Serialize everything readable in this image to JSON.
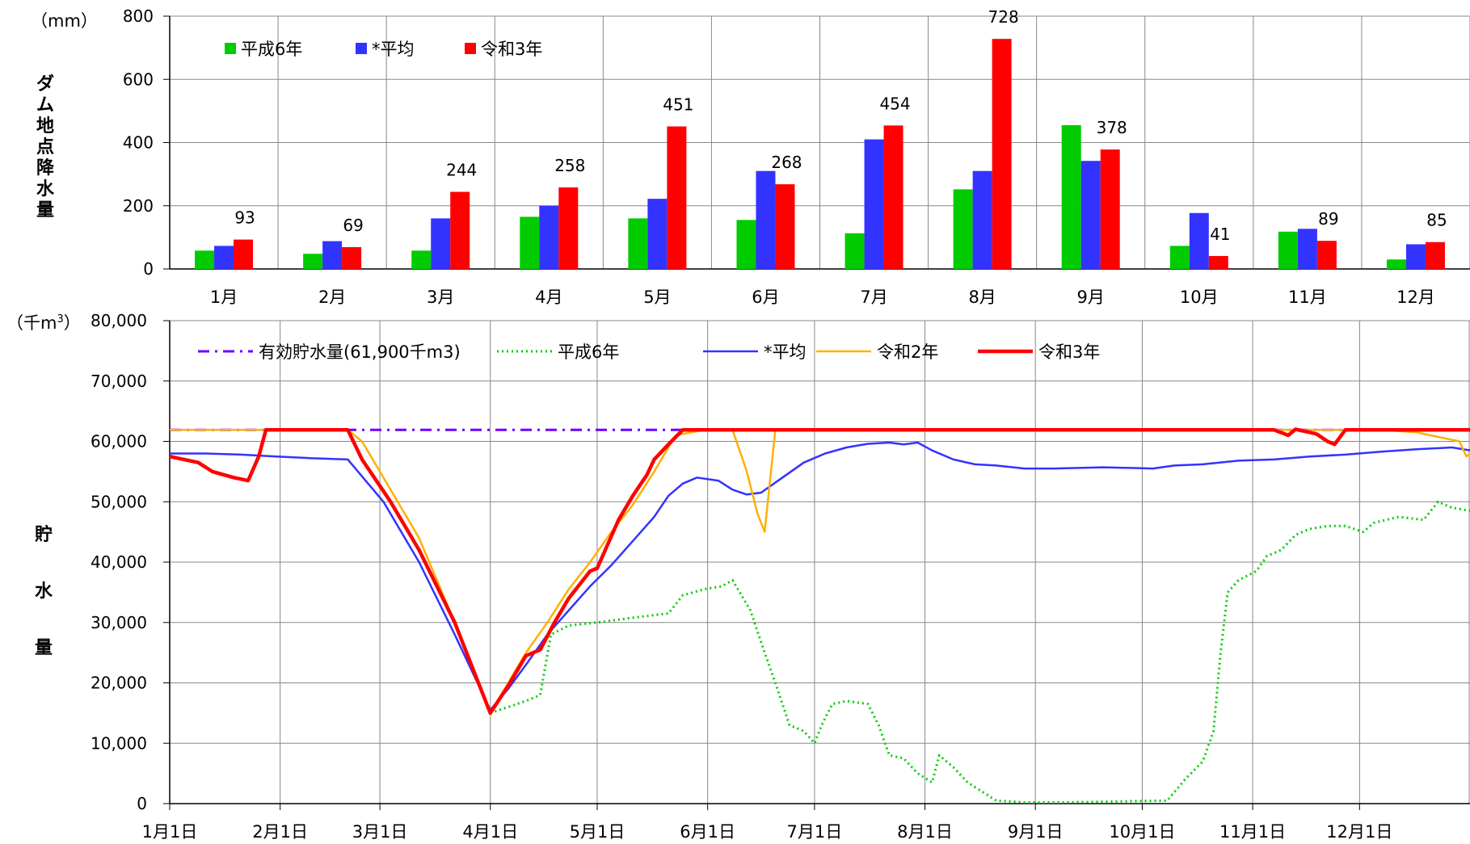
{
  "chart_data": [
    {
      "type": "bar",
      "ylabel": "ダム地点降水量",
      "unit": "（mm）",
      "ylim": [
        0,
        800
      ],
      "yticks": [
        "0",
        "200",
        "400",
        "600",
        "800"
      ],
      "categories": [
        "1月",
        "2月",
        "3月",
        "4月",
        "5月",
        "6月",
        "7月",
        "8月",
        "9月",
        "10月",
        "11月",
        "12月"
      ],
      "series": [
        {
          "name": "平成6年",
          "color": "#00cc00",
          "values": [
            58,
            48,
            58,
            165,
            160,
            155,
            113,
            252,
            455,
            73,
            118,
            30
          ]
        },
        {
          "name": "*平均",
          "color": "#3333ff",
          "values": [
            73,
            88,
            160,
            200,
            222,
            310,
            410,
            310,
            342,
            177,
            127,
            78
          ]
        },
        {
          "name": "令和3年",
          "color": "#ff0000",
          "values": [
            93,
            69,
            244,
            258,
            451,
            268,
            454,
            728,
            378,
            41,
            89,
            85
          ],
          "labels": [
            "93",
            "69",
            "244",
            "258",
            "451",
            "268",
            "454",
            "728",
            "378",
            "41",
            "89",
            "85"
          ]
        }
      ],
      "legend": "top-left",
      "grid": true
    },
    {
      "type": "line",
      "ylabel": "貯水量",
      "unit_prefix": "（千m",
      "unit_sup": "3",
      "unit_suffix": "）",
      "ylim": [
        0,
        80000
      ],
      "yticks": [
        "0",
        "10,000",
        "20,000",
        "30,000",
        "40,000",
        "50,000",
        "60,000",
        "70,000",
        "80,000"
      ],
      "xticks": [
        "1月1日",
        "2月1日",
        "3月1日",
        "4月1日",
        "5月1日",
        "6月1日",
        "7月1日",
        "8月1日",
        "9月1日",
        "10月1日",
        "11月1日",
        "12月1日"
      ],
      "legend": "top",
      "grid": true,
      "series": [
        {
          "name": "有効貯水量(61,900千m3)",
          "color": "#6a00ff",
          "style": "dashdot",
          "points": [
            [
              0,
              61900
            ],
            [
              365,
              61900
            ]
          ]
        },
        {
          "name": "平成6年",
          "color": "#00cc00",
          "style": "dotted",
          "points": [
            [
              90,
              15000
            ],
            [
              100,
              17000
            ],
            [
              104,
              18000
            ],
            [
              107,
              28000
            ],
            [
              112,
              29500
            ],
            [
              120,
              30000
            ],
            [
              130,
              30800
            ],
            [
              140,
              31500
            ],
            [
              144,
              34500
            ],
            [
              150,
              35500
            ],
            [
              155,
              36000
            ],
            [
              158,
              37000
            ],
            [
              163,
              32000
            ],
            [
              167,
              25000
            ],
            [
              170,
              20000
            ],
            [
              174,
              13000
            ],
            [
              178,
              12000
            ],
            [
              181,
              10000
            ],
            [
              183,
              13000
            ],
            [
              186,
              16500
            ],
            [
              190,
              17000
            ],
            [
              196,
              16500
            ],
            [
              199,
              13000
            ],
            [
              202,
              8000
            ],
            [
              206,
              7500
            ],
            [
              210,
              5000
            ],
            [
              214,
              3500
            ],
            [
              216,
              8000
            ],
            [
              220,
              6000
            ],
            [
              224,
              3500
            ],
            [
              228,
              2000
            ],
            [
              232,
              500
            ],
            [
              240,
              200
            ],
            [
              250,
              200
            ],
            [
              260,
              300
            ],
            [
              270,
              400
            ],
            [
              280,
              500
            ],
            [
              285,
              4000
            ],
            [
              290,
              7000
            ],
            [
              293,
              12000
            ],
            [
              295,
              25000
            ],
            [
              297,
              35000
            ],
            [
              300,
              37000
            ],
            [
              305,
              38500
            ],
            [
              308,
              41000
            ],
            [
              312,
              42000
            ],
            [
              316,
              44500
            ],
            [
              320,
              45500
            ],
            [
              325,
              46000
            ],
            [
              330,
              46000
            ],
            [
              335,
              45000
            ],
            [
              338,
              46500
            ],
            [
              345,
              47500
            ],
            [
              352,
              47000
            ],
            [
              356,
              50000
            ],
            [
              360,
              49000
            ],
            [
              365,
              48500
            ]
          ]
        },
        {
          "name": "*平均",
          "color": "#3333ff",
          "style": "solid",
          "points": [
            [
              0,
              58000
            ],
            [
              10,
              58000
            ],
            [
              20,
              57800
            ],
            [
              30,
              57500
            ],
            [
              40,
              57200
            ],
            [
              50,
              57000
            ],
            [
              60,
              50000
            ],
            [
              70,
              40000
            ],
            [
              80,
              28000
            ],
            [
              90,
              15500
            ],
            [
              95,
              19000
            ],
            [
              100,
              23000
            ],
            [
              106,
              28000
            ],
            [
              112,
              32000
            ],
            [
              118,
              36000
            ],
            [
              124,
              39500
            ],
            [
              130,
              43500
            ],
            [
              136,
              47500
            ],
            [
              140,
              51000
            ],
            [
              144,
              53000
            ],
            [
              148,
              54000
            ],
            [
              154,
              53500
            ],
            [
              158,
              52000
            ],
            [
              162,
              51200
            ],
            [
              166,
              51500
            ],
            [
              172,
              54000
            ],
            [
              178,
              56500
            ],
            [
              184,
              58000
            ],
            [
              190,
              59000
            ],
            [
              196,
              59600
            ],
            [
              202,
              59800
            ],
            [
              206,
              59500
            ],
            [
              210,
              59800
            ],
            [
              214,
              58500
            ],
            [
              220,
              57000
            ],
            [
              226,
              56200
            ],
            [
              232,
              56000
            ],
            [
              240,
              55500
            ],
            [
              248,
              55500
            ],
            [
              255,
              55600
            ],
            [
              262,
              55700
            ],
            [
              270,
              55600
            ],
            [
              276,
              55500
            ],
            [
              282,
              56000
            ],
            [
              290,
              56200
            ],
            [
              300,
              56800
            ],
            [
              310,
              57000
            ],
            [
              320,
              57500
            ],
            [
              330,
              57800
            ],
            [
              340,
              58300
            ],
            [
              350,
              58700
            ],
            [
              360,
              59000
            ],
            [
              365,
              58500
            ]
          ]
        },
        {
          "name": "令和2年",
          "color": "#ffb000",
          "style": "solid",
          "points": [
            [
              0,
              61900
            ],
            [
              28,
              61900
            ],
            [
              50,
              61900
            ],
            [
              54,
              60000
            ],
            [
              62,
              52000
            ],
            [
              70,
              44000
            ],
            [
              80,
              30000
            ],
            [
              90,
              15000
            ],
            [
              95,
              20000
            ],
            [
              100,
              25000
            ],
            [
              106,
              30000
            ],
            [
              112,
              35500
            ],
            [
              118,
              40000
            ],
            [
              124,
              45000
            ],
            [
              130,
              49500
            ],
            [
              136,
              55000
            ],
            [
              142,
              61000
            ],
            [
              150,
              61900
            ],
            [
              158,
              61900
            ],
            [
              162,
              55000
            ],
            [
              165,
              48000
            ],
            [
              167,
              45000
            ],
            [
              170,
              61900
            ],
            [
              200,
              61900
            ],
            [
              300,
              61900
            ],
            [
              340,
              61900
            ],
            [
              350,
              61500
            ],
            [
              362,
              60000
            ],
            [
              364,
              57500
            ],
            [
              365,
              58000
            ]
          ]
        },
        {
          "name": "令和3年",
          "color": "#ff0000",
          "style": "solid",
          "points": [
            [
              0,
              57500
            ],
            [
              8,
              56500
            ],
            [
              12,
              55000
            ],
            [
              18,
              54000
            ],
            [
              22,
              53500
            ],
            [
              25,
              57500
            ],
            [
              27,
              61900
            ],
            [
              40,
              61900
            ],
            [
              50,
              61900
            ],
            [
              54,
              57000
            ],
            [
              62,
              50000
            ],
            [
              70,
              42000
            ],
            [
              80,
              30000
            ],
            [
              90,
              15000
            ],
            [
              95,
              19500
            ],
            [
              100,
              24500
            ],
            [
              104,
              25500
            ],
            [
              108,
              30000
            ],
            [
              112,
              34000
            ],
            [
              116,
              37000
            ],
            [
              118,
              38500
            ],
            [
              120,
              39000
            ],
            [
              123,
              43000
            ],
            [
              126,
              47000
            ],
            [
              130,
              51000
            ],
            [
              134,
              54500
            ],
            [
              136,
              57000
            ],
            [
              140,
              59500
            ],
            [
              144,
              61900
            ],
            [
              200,
              61900
            ],
            [
              300,
              61900
            ],
            [
              310,
              61900
            ],
            [
              314,
              61000
            ],
            [
              316,
              62000
            ],
            [
              320,
              61500
            ],
            [
              322,
              61200
            ],
            [
              325,
              60000
            ],
            [
              327,
              59500
            ],
            [
              330,
              61900
            ],
            [
              365,
              61900
            ]
          ]
        }
      ]
    }
  ]
}
